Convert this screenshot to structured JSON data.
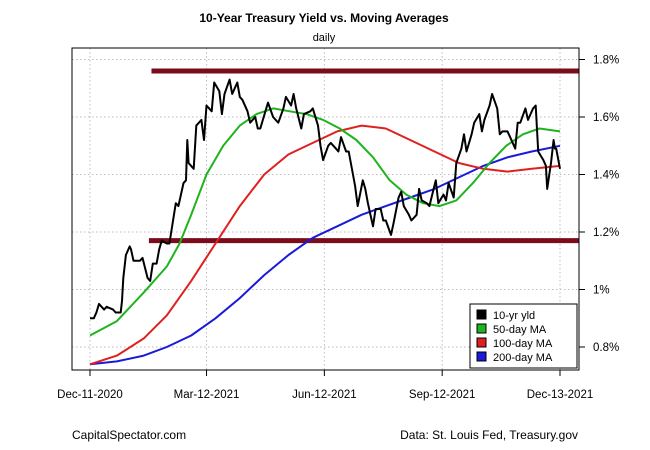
{
  "chart_data": {
    "type": "line",
    "title": "10-Year Treasury Yield vs. Moving Averages",
    "subtitle": "daily",
    "x_tick_labels": [
      "Dec-11-2020",
      "Mar-12-2021",
      "Jun-12-2021",
      "Sep-12-2021",
      "Dec-13-2021"
    ],
    "x_ticks": [
      "2020-12-11",
      "2021-03-12",
      "2021-06-12",
      "2021-09-12",
      "2021-12-13"
    ],
    "xlim": [
      "2020-12-11",
      "2021-12-13"
    ],
    "y_tick_labels": [
      "0.8%",
      "1%",
      "1.2%",
      "1.4%",
      "1.6%",
      "1.8%"
    ],
    "y_ticks": [
      0.8,
      1.0,
      1.2,
      1.4,
      1.6,
      1.8
    ],
    "ylim": [
      0.72,
      1.84
    ],
    "y_axis_side": "right",
    "grid": true,
    "legend_position": "bottom-right",
    "reference_lines": [
      {
        "y": 1.76,
        "x_start": "2021-01-28",
        "x_end": "2021-12-13",
        "color": "#7a0c1c"
      },
      {
        "y": 1.17,
        "x_start": "2021-01-26",
        "x_end": "2021-12-13",
        "color": "#7a0c1c"
      }
    ],
    "series": [
      {
        "name": "10-yr yld",
        "color": "#000000",
        "points": [
          [
            "2020-12-11",
            0.9
          ],
          [
            "2020-12-14",
            0.9
          ],
          [
            "2020-12-16",
            0.92
          ],
          [
            "2020-12-18",
            0.95
          ],
          [
            "2020-12-22",
            0.93
          ],
          [
            "2020-12-24",
            0.94
          ],
          [
            "2020-12-29",
            0.93
          ],
          [
            "2020-12-31",
            0.92
          ],
          [
            "2021-01-04",
            0.92
          ],
          [
            "2021-01-05",
            0.96
          ],
          [
            "2021-01-06",
            1.04
          ],
          [
            "2021-01-08",
            1.12
          ],
          [
            "2021-01-11",
            1.15
          ],
          [
            "2021-01-12",
            1.14
          ],
          [
            "2021-01-14",
            1.1
          ],
          [
            "2021-01-19",
            1.1
          ],
          [
            "2021-01-21",
            1.11
          ],
          [
            "2021-01-25",
            1.04
          ],
          [
            "2021-01-27",
            1.03
          ],
          [
            "2021-01-29",
            1.09
          ],
          [
            "2021-02-01",
            1.09
          ],
          [
            "2021-02-03",
            1.14
          ],
          [
            "2021-02-05",
            1.17
          ],
          [
            "2021-02-09",
            1.16
          ],
          [
            "2021-02-11",
            1.16
          ],
          [
            "2021-02-16",
            1.3
          ],
          [
            "2021-02-18",
            1.29
          ],
          [
            "2021-02-22",
            1.37
          ],
          [
            "2021-02-24",
            1.38
          ],
          [
            "2021-02-25",
            1.52
          ],
          [
            "2021-02-26",
            1.44
          ],
          [
            "2021-03-02",
            1.42
          ],
          [
            "2021-03-04",
            1.57
          ],
          [
            "2021-03-08",
            1.59
          ],
          [
            "2021-03-10",
            1.52
          ],
          [
            "2021-03-12",
            1.64
          ],
          [
            "2021-03-16",
            1.62
          ],
          [
            "2021-03-18",
            1.72
          ],
          [
            "2021-03-22",
            1.69
          ],
          [
            "2021-03-24",
            1.61
          ],
          [
            "2021-03-26",
            1.68
          ],
          [
            "2021-03-30",
            1.73
          ],
          [
            "2021-04-01",
            1.68
          ],
          [
            "2021-04-05",
            1.72
          ],
          [
            "2021-04-07",
            1.67
          ],
          [
            "2021-04-09",
            1.66
          ],
          [
            "2021-04-13",
            1.62
          ],
          [
            "2021-04-15",
            1.58
          ],
          [
            "2021-04-19",
            1.6
          ],
          [
            "2021-04-21",
            1.56
          ],
          [
            "2021-04-23",
            1.56
          ],
          [
            "2021-04-27",
            1.62
          ],
          [
            "2021-04-29",
            1.65
          ],
          [
            "2021-05-03",
            1.6
          ],
          [
            "2021-05-05",
            1.59
          ],
          [
            "2021-05-07",
            1.58
          ],
          [
            "2021-05-11",
            1.63
          ],
          [
            "2021-05-13",
            1.67
          ],
          [
            "2021-05-17",
            1.64
          ],
          [
            "2021-05-19",
            1.68
          ],
          [
            "2021-05-21",
            1.63
          ],
          [
            "2021-05-25",
            1.56
          ],
          [
            "2021-05-27",
            1.61
          ],
          [
            "2021-06-01",
            1.62
          ],
          [
            "2021-06-03",
            1.63
          ],
          [
            "2021-06-07",
            1.57
          ],
          [
            "2021-06-09",
            1.5
          ],
          [
            "2021-06-11",
            1.45
          ],
          [
            "2021-06-15",
            1.5
          ],
          [
            "2021-06-17",
            1.51
          ],
          [
            "2021-06-21",
            1.49
          ],
          [
            "2021-06-23",
            1.48
          ],
          [
            "2021-06-25",
            1.53
          ],
          [
            "2021-06-29",
            1.48
          ],
          [
            "2021-07-01",
            1.48
          ],
          [
            "2021-07-06",
            1.36
          ],
          [
            "2021-07-08",
            1.29
          ],
          [
            "2021-07-12",
            1.38
          ],
          [
            "2021-07-14",
            1.35
          ],
          [
            "2021-07-16",
            1.3
          ],
          [
            "2021-07-20",
            1.22
          ],
          [
            "2021-07-22",
            1.28
          ],
          [
            "2021-07-26",
            1.28
          ],
          [
            "2021-07-28",
            1.24
          ],
          [
            "2021-07-30",
            1.24
          ],
          [
            "2021-08-03",
            1.19
          ],
          [
            "2021-08-05",
            1.23
          ],
          [
            "2021-08-09",
            1.32
          ],
          [
            "2021-08-11",
            1.34
          ],
          [
            "2021-08-13",
            1.29
          ],
          [
            "2021-08-17",
            1.26
          ],
          [
            "2021-08-19",
            1.24
          ],
          [
            "2021-08-23",
            1.26
          ],
          [
            "2021-08-25",
            1.35
          ],
          [
            "2021-08-27",
            1.31
          ],
          [
            "2021-08-31",
            1.3
          ],
          [
            "2021-09-02",
            1.29
          ],
          [
            "2021-09-07",
            1.38
          ],
          [
            "2021-09-09",
            1.3
          ],
          [
            "2021-09-13",
            1.33
          ],
          [
            "2021-09-15",
            1.31
          ],
          [
            "2021-09-17",
            1.37
          ],
          [
            "2021-09-21",
            1.32
          ],
          [
            "2021-09-23",
            1.44
          ],
          [
            "2021-09-27",
            1.49
          ],
          [
            "2021-09-29",
            1.54
          ],
          [
            "2021-10-01",
            1.48
          ],
          [
            "2021-10-05",
            1.54
          ],
          [
            "2021-10-07",
            1.58
          ],
          [
            "2021-10-11",
            1.61
          ],
          [
            "2021-10-13",
            1.55
          ],
          [
            "2021-10-15",
            1.59
          ],
          [
            "2021-10-19",
            1.64
          ],
          [
            "2021-10-21",
            1.68
          ],
          [
            "2021-10-25",
            1.63
          ],
          [
            "2021-10-27",
            1.54
          ],
          [
            "2021-10-29",
            1.55
          ],
          [
            "2021-11-02",
            1.55
          ],
          [
            "2021-11-04",
            1.53
          ],
          [
            "2021-11-08",
            1.49
          ],
          [
            "2021-11-10",
            1.58
          ],
          [
            "2021-11-12",
            1.58
          ],
          [
            "2021-11-16",
            1.63
          ],
          [
            "2021-11-18",
            1.59
          ],
          [
            "2021-11-22",
            1.63
          ],
          [
            "2021-11-24",
            1.64
          ],
          [
            "2021-11-26",
            1.48
          ],
          [
            "2021-11-30",
            1.45
          ],
          [
            "2021-12-02",
            1.43
          ],
          [
            "2021-12-03",
            1.35
          ],
          [
            "2021-12-06",
            1.44
          ],
          [
            "2021-12-08",
            1.52
          ],
          [
            "2021-12-09",
            1.49
          ],
          [
            "2021-12-10",
            1.49
          ],
          [
            "2021-12-13",
            1.42
          ]
        ]
      },
      {
        "name": "50-day MA",
        "color": "#1fb31f",
        "points": [
          [
            "2020-12-11",
            0.84
          ],
          [
            "2021-01-01",
            0.89
          ],
          [
            "2021-01-22",
            0.99
          ],
          [
            "2021-02-09",
            1.08
          ],
          [
            "2021-02-19",
            1.16
          ],
          [
            "2021-02-28",
            1.26
          ],
          [
            "2021-03-12",
            1.4
          ],
          [
            "2021-03-25",
            1.5
          ],
          [
            "2021-04-07",
            1.57
          ],
          [
            "2021-04-20",
            1.61
          ],
          [
            "2021-05-03",
            1.63
          ],
          [
            "2021-05-16",
            1.62
          ],
          [
            "2021-05-29",
            1.61
          ],
          [
            "2021-06-11",
            1.59
          ],
          [
            "2021-06-24",
            1.56
          ],
          [
            "2021-07-07",
            1.52
          ],
          [
            "2021-07-20",
            1.46
          ],
          [
            "2021-08-02",
            1.38
          ],
          [
            "2021-08-15",
            1.33
          ],
          [
            "2021-08-28",
            1.3
          ],
          [
            "2021-09-10",
            1.29
          ],
          [
            "2021-09-23",
            1.31
          ],
          [
            "2021-10-06",
            1.37
          ],
          [
            "2021-10-19",
            1.44
          ],
          [
            "2021-11-01",
            1.5
          ],
          [
            "2021-11-14",
            1.54
          ],
          [
            "2021-11-27",
            1.56
          ],
          [
            "2021-12-13",
            1.55
          ]
        ]
      },
      {
        "name": "100-day MA",
        "color": "#e01f1f",
        "points": [
          [
            "2020-12-11",
            0.74
          ],
          [
            "2021-01-01",
            0.77
          ],
          [
            "2021-01-22",
            0.83
          ],
          [
            "2021-02-09",
            0.91
          ],
          [
            "2021-02-28",
            1.03
          ],
          [
            "2021-03-19",
            1.16
          ],
          [
            "2021-04-07",
            1.29
          ],
          [
            "2021-04-26",
            1.4
          ],
          [
            "2021-05-15",
            1.47
          ],
          [
            "2021-06-03",
            1.51
          ],
          [
            "2021-06-22",
            1.55
          ],
          [
            "2021-07-11",
            1.57
          ],
          [
            "2021-07-30",
            1.56
          ],
          [
            "2021-08-18",
            1.52
          ],
          [
            "2021-09-06",
            1.48
          ],
          [
            "2021-09-25",
            1.44
          ],
          [
            "2021-10-14",
            1.42
          ],
          [
            "2021-11-02",
            1.41
          ],
          [
            "2021-11-21",
            1.42
          ],
          [
            "2021-12-13",
            1.43
          ]
        ]
      },
      {
        "name": "200-day MA",
        "color": "#1a1ad9",
        "points": [
          [
            "2020-12-11",
            0.74
          ],
          [
            "2021-01-01",
            0.75
          ],
          [
            "2021-01-22",
            0.77
          ],
          [
            "2021-02-09",
            0.8
          ],
          [
            "2021-02-28",
            0.84
          ],
          [
            "2021-03-19",
            0.9
          ],
          [
            "2021-04-07",
            0.97
          ],
          [
            "2021-04-26",
            1.05
          ],
          [
            "2021-05-15",
            1.12
          ],
          [
            "2021-06-03",
            1.18
          ],
          [
            "2021-06-22",
            1.22
          ],
          [
            "2021-07-11",
            1.26
          ],
          [
            "2021-07-30",
            1.29
          ],
          [
            "2021-08-18",
            1.32
          ],
          [
            "2021-09-06",
            1.35
          ],
          [
            "2021-09-25",
            1.39
          ],
          [
            "2021-10-14",
            1.43
          ],
          [
            "2021-11-02",
            1.46
          ],
          [
            "2021-11-21",
            1.48
          ],
          [
            "2021-12-13",
            1.5
          ]
        ]
      }
    ]
  },
  "footer": {
    "left": "CapitalSpectator.com",
    "right": "Data: St. Louis Fed, Treasury.gov"
  }
}
